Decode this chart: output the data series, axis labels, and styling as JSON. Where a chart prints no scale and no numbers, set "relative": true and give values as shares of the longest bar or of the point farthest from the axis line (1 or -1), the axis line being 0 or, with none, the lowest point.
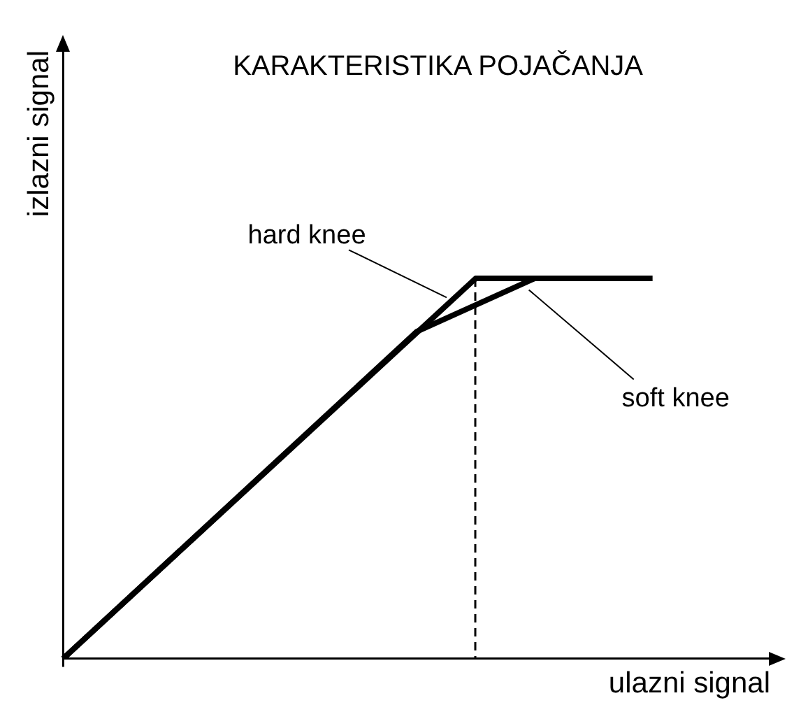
{
  "chart_data": {
    "type": "line",
    "title": "KARAKTERISTIKA POJAČANJA",
    "xlabel": "ulazni signal",
    "ylabel": "izlazni signal",
    "relative": true,
    "grid": false,
    "legend": false,
    "marker": "none",
    "line_style": "solid",
    "categories": [
      null,
      null,
      null,
      null,
      null,
      null,
      null,
      null,
      null,
      null,
      null,
      null,
      null
    ],
    "series": [
      {
        "color": "#000000",
        "values": [
          0,
          null,
          null,
          null,
          null,
          null,
          null,
          1,
          null,
          null,
          1,
          null,
          null
        ]
      },
      {
        "color": "#000000",
        "values": [
          0,
          null,
          null,
          null,
          null,
          null,
          0.86,
          null,
          1,
          null,
          1,
          null,
          null
        ]
      }
    ],
    "annotations": [
      "hard knee",
      "soft knee"
    ]
  }
}
